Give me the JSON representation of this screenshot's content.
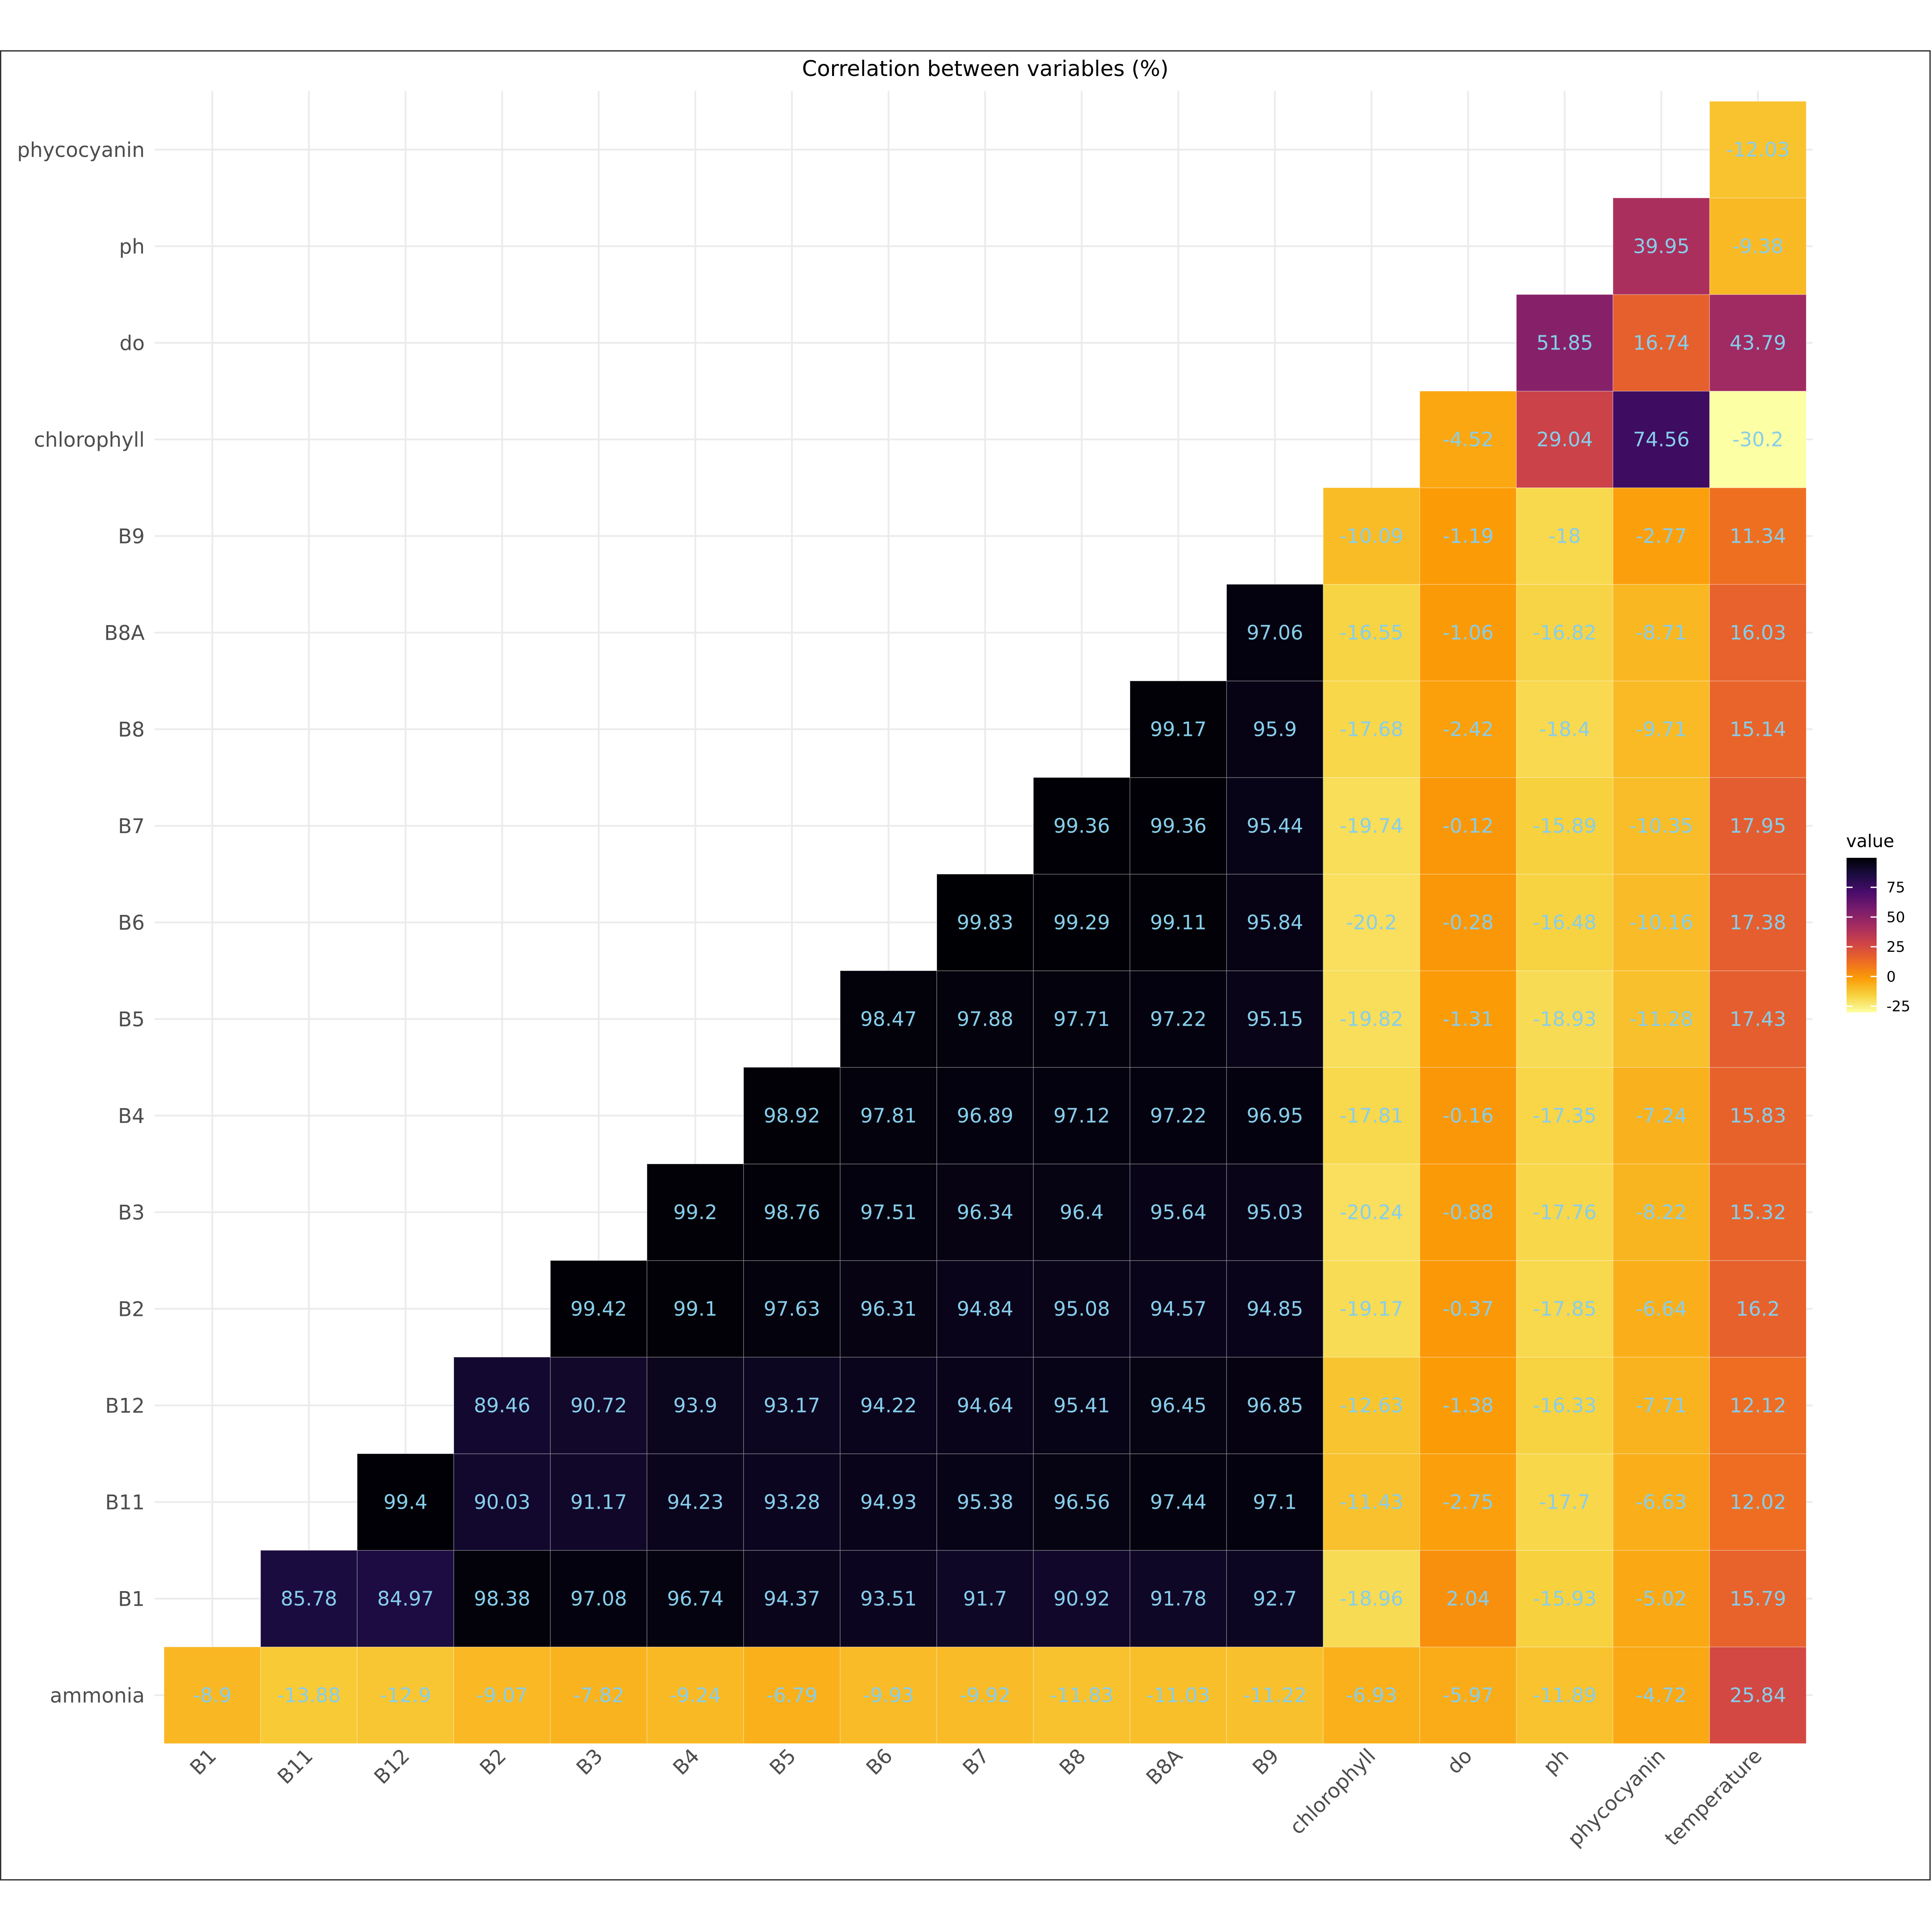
{
  "chart_data": {
    "type": "heatmap",
    "title": "Correlation between variables (%)",
    "x_categories": [
      "B1",
      "B11",
      "B12",
      "B2",
      "B3",
      "B4",
      "B5",
      "B6",
      "B7",
      "B8",
      "B8A",
      "B9",
      "chlorophyll",
      "do",
      "ph",
      "phycocyanin",
      "temperature"
    ],
    "y_categories": [
      "ammonia",
      "B1",
      "B11",
      "B12",
      "B2",
      "B3",
      "B4",
      "B5",
      "B6",
      "B7",
      "B8",
      "B8A",
      "B9",
      "chlorophyll",
      "do",
      "ph",
      "phycocyanin"
    ],
    "values": [
      [
        -8.9,
        -13.88,
        -12.9,
        -9.07,
        -7.82,
        -9.24,
        -6.79,
        -9.93,
        -9.92,
        -11.83,
        -11.03,
        -11.22,
        -6.93,
        -5.97,
        -11.89,
        -4.72,
        25.84
      ],
      [
        null,
        85.78,
        84.97,
        98.38,
        97.08,
        96.74,
        94.37,
        93.51,
        91.7,
        90.92,
        91.78,
        92.7,
        -18.96,
        2.04,
        -15.93,
        -5.02,
        15.79
      ],
      [
        null,
        null,
        99.4,
        90.03,
        91.17,
        94.23,
        93.28,
        94.93,
        95.38,
        96.56,
        97.44,
        97.1,
        -11.43,
        -2.75,
        -17.7,
        -6.63,
        12.02
      ],
      [
        null,
        null,
        null,
        89.46,
        90.72,
        93.9,
        93.17,
        94.22,
        94.64,
        95.41,
        96.45,
        96.85,
        -12.63,
        -1.38,
        -16.33,
        -7.71,
        12.12
      ],
      [
        null,
        null,
        null,
        null,
        99.42,
        99.1,
        97.63,
        96.31,
        94.84,
        95.08,
        94.57,
        94.85,
        -19.17,
        -0.37,
        -17.85,
        -6.64,
        16.2
      ],
      [
        null,
        null,
        null,
        null,
        null,
        99.2,
        98.76,
        97.51,
        96.34,
        96.4,
        95.64,
        95.03,
        -20.24,
        -0.88,
        -17.76,
        -8.22,
        15.32
      ],
      [
        null,
        null,
        null,
        null,
        null,
        null,
        98.92,
        97.81,
        96.89,
        97.12,
        97.22,
        96.95,
        -17.81,
        -0.16,
        -17.35,
        -7.24,
        15.83
      ],
      [
        null,
        null,
        null,
        null,
        null,
        null,
        null,
        98.47,
        97.88,
        97.71,
        97.22,
        95.15,
        -19.82,
        -1.31,
        -18.93,
        -11.28,
        17.43
      ],
      [
        null,
        null,
        null,
        null,
        null,
        null,
        null,
        null,
        99.83,
        99.29,
        99.11,
        95.84,
        -20.2,
        -0.28,
        -16.48,
        -10.16,
        17.38
      ],
      [
        null,
        null,
        null,
        null,
        null,
        null,
        null,
        null,
        null,
        99.36,
        99.36,
        95.44,
        -19.74,
        -0.12,
        -15.89,
        -10.35,
        17.95
      ],
      [
        null,
        null,
        null,
        null,
        null,
        null,
        null,
        null,
        null,
        null,
        99.17,
        95.9,
        -17.68,
        -2.42,
        -18.4,
        -9.71,
        15.14
      ],
      [
        null,
        null,
        null,
        null,
        null,
        null,
        null,
        null,
        null,
        null,
        null,
        97.06,
        -16.55,
        -1.06,
        -16.82,
        -8.71,
        16.03
      ],
      [
        null,
        null,
        null,
        null,
        null,
        null,
        null,
        null,
        null,
        null,
        null,
        null,
        -10.09,
        -1.19,
        -18,
        -2.77,
        11.34
      ],
      [
        null,
        null,
        null,
        null,
        null,
        null,
        null,
        null,
        null,
        null,
        null,
        null,
        null,
        -4.52,
        29.04,
        74.56,
        -30.2
      ],
      [
        null,
        null,
        null,
        null,
        null,
        null,
        null,
        null,
        null,
        null,
        null,
        null,
        null,
        null,
        51.85,
        16.74,
        43.79
      ],
      [
        null,
        null,
        null,
        null,
        null,
        null,
        null,
        null,
        null,
        null,
        null,
        null,
        null,
        null,
        null,
        39.95,
        -9.38
      ],
      [
        null,
        null,
        null,
        null,
        null,
        null,
        null,
        null,
        null,
        null,
        null,
        null,
        null,
        null,
        null,
        null,
        -12.03
      ]
    ],
    "color_scale": {
      "name": "inferno",
      "reversed": true,
      "min": -30.2,
      "max": 99.83,
      "stops": [
        "#fcffa4",
        "#f7d13d",
        "#fb9b06",
        "#ed6925",
        "#cf4446",
        "#a52c60",
        "#781c6d",
        "#4a0c6b",
        "#1b0c41",
        "#000004"
      ]
    },
    "legend": {
      "title": "value",
      "ticks": [
        75,
        50,
        25,
        0,
        -25
      ],
      "position": "right"
    },
    "grid": true,
    "label_color": "#87ceeb"
  }
}
